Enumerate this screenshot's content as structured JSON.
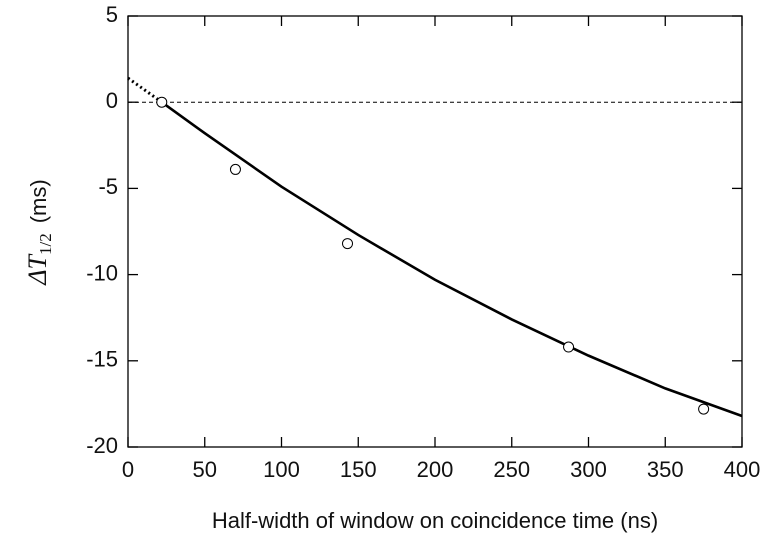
{
  "chart_data": {
    "type": "scatter",
    "xlabel": "Half-width of window on coincidence time  (ns)",
    "ylabel": {
      "symbol": "ΔT",
      "subscript": "1/2",
      "unit": "(ms)"
    },
    "x": [
      22,
      70,
      143,
      287,
      375
    ],
    "values": [
      0,
      -3.9,
      -8.2,
      -14.2,
      -17.8
    ],
    "fit": {
      "x": [
        22,
        50,
        100,
        150,
        200,
        250,
        300,
        350,
        400
      ],
      "values": [
        0,
        -1.8,
        -4.9,
        -7.7,
        -10.3,
        -12.6,
        -14.7,
        -16.6,
        -18.2
      ]
    },
    "extrapolation": {
      "x": [
        0,
        22
      ],
      "values": [
        1.4,
        0
      ]
    },
    "reference_line": 0,
    "xlim": [
      0,
      400
    ],
    "xticks": [
      0,
      50,
      100,
      150,
      200,
      250,
      300,
      350,
      400
    ],
    "ylim": [
      -20,
      5
    ],
    "yticks": [
      5,
      0,
      -5,
      -10,
      -15,
      -20
    ],
    "color": "#000000"
  }
}
